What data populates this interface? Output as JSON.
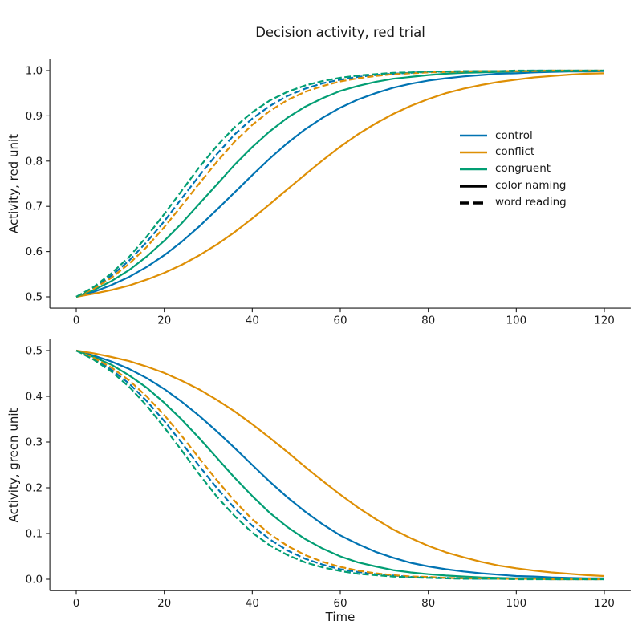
{
  "chart_data": {
    "type": "line",
    "title": "Decision activity, red trial",
    "xlabel": "Time",
    "xlim": [
      0,
      120
    ],
    "x_ticks": [
      0,
      20,
      40,
      60,
      80,
      100,
      120
    ],
    "grid": false,
    "legend_position": "upper panel, center right",
    "palette": {
      "control": "#0173b2",
      "conflict": "#de8f05",
      "congruent": "#029e73"
    },
    "legend": {
      "entries": [
        {
          "label": "control",
          "color": "#0173b2",
          "dashed": false,
          "thick": false
        },
        {
          "label": "conflict",
          "color": "#de8f05",
          "dashed": false,
          "thick": false
        },
        {
          "label": "congruent",
          "color": "#029e73",
          "dashed": false,
          "thick": false
        },
        {
          "label": "color naming",
          "color": "#000000",
          "dashed": false,
          "thick": true
        },
        {
          "label": "word reading",
          "color": "#000000",
          "dashed": true,
          "thick": true
        }
      ]
    },
    "t": [
      0,
      4,
      8,
      12,
      16,
      20,
      24,
      28,
      32,
      36,
      40,
      44,
      48,
      52,
      56,
      60,
      64,
      68,
      72,
      76,
      80,
      84,
      88,
      92,
      96,
      100,
      104,
      108,
      112,
      116,
      120
    ],
    "panels": [
      {
        "id": "red",
        "ylabel": "Activity, red unit",
        "ylim": [
          0.5,
          1.0
        ],
        "y_ticks": [
          0.5,
          0.6,
          0.7,
          0.8,
          0.9,
          1.0
        ],
        "series": [
          {
            "condition": "control",
            "task": "color naming",
            "style": "solid",
            "color": "#0173b2",
            "values": [
              0.5,
              0.511,
              0.526,
              0.544,
              0.566,
              0.592,
              0.622,
              0.656,
              0.693,
              0.731,
              0.769,
              0.806,
              0.84,
              0.87,
              0.896,
              0.918,
              0.936,
              0.95,
              0.962,
              0.971,
              0.978,
              0.983,
              0.987,
              0.99,
              0.993,
              0.994,
              0.996,
              0.997,
              0.998,
              0.998,
              0.999
            ]
          },
          {
            "condition": "conflict",
            "task": "color naming",
            "style": "solid",
            "color": "#de8f05",
            "values": [
              0.5,
              0.507,
              0.515,
              0.525,
              0.538,
              0.553,
              0.571,
              0.592,
              0.616,
              0.643,
              0.673,
              0.705,
              0.738,
              0.77,
              0.802,
              0.832,
              0.859,
              0.883,
              0.904,
              0.922,
              0.937,
              0.95,
              0.96,
              0.968,
              0.975,
              0.98,
              0.985,
              0.988,
              0.991,
              0.993,
              0.994
            ]
          },
          {
            "condition": "congruent",
            "task": "color naming",
            "style": "solid",
            "color": "#029e73",
            "values": [
              0.5,
              0.515,
              0.535,
              0.559,
              0.589,
              0.624,
              0.663,
              0.706,
              0.749,
              0.792,
              0.831,
              0.866,
              0.896,
              0.92,
              0.939,
              0.955,
              0.966,
              0.975,
              0.982,
              0.986,
              0.99,
              0.993,
              0.995,
              0.996,
              0.997,
              0.998,
              0.999,
              0.999,
              0.999,
              0.999,
              1.0
            ]
          },
          {
            "condition": "control",
            "task": "word reading",
            "style": "dashed",
            "color": "#0173b2",
            "values": [
              0.5,
              0.52,
              0.547,
              0.58,
              0.621,
              0.667,
              0.718,
              0.768,
              0.816,
              0.859,
              0.894,
              0.922,
              0.944,
              0.96,
              0.972,
              0.98,
              0.986,
              0.99,
              0.993,
              0.995,
              0.997,
              0.998,
              0.998,
              0.999,
              0.999,
              0.999,
              1.0,
              1.0,
              1.0,
              1.0,
              1.0
            ]
          },
          {
            "condition": "conflict",
            "task": "word reading",
            "style": "dashed",
            "color": "#de8f05",
            "values": [
              0.5,
              0.518,
              0.542,
              0.573,
              0.61,
              0.654,
              0.702,
              0.751,
              0.799,
              0.843,
              0.88,
              0.911,
              0.935,
              0.953,
              0.966,
              0.976,
              0.983,
              0.988,
              0.992,
              0.994,
              0.996,
              0.997,
              0.998,
              0.999,
              0.999,
              0.999,
              0.999,
              1.0,
              1.0,
              1.0,
              1.0
            ]
          },
          {
            "condition": "congruent",
            "task": "word reading",
            "style": "dashed",
            "color": "#029e73",
            "values": [
              0.5,
              0.522,
              0.552,
              0.588,
              0.633,
              0.683,
              0.735,
              0.787,
              0.834,
              0.875,
              0.908,
              0.934,
              0.953,
              0.967,
              0.977,
              0.984,
              0.989,
              0.992,
              0.995,
              0.996,
              0.998,
              0.998,
              0.999,
              0.999,
              0.999,
              1.0,
              1.0,
              1.0,
              1.0,
              1.0,
              1.0
            ]
          }
        ]
      },
      {
        "id": "green",
        "ylabel": "Activity, green unit",
        "ylim": [
          0.0,
          0.5
        ],
        "y_ticks": [
          0.0,
          0.1,
          0.2,
          0.3,
          0.4,
          0.5
        ],
        "series": [
          {
            "condition": "control",
            "task": "color naming",
            "style": "solid",
            "color": "#0173b2",
            "values": [
              0.5,
              0.489,
              0.476,
              0.46,
              0.44,
              0.416,
              0.388,
              0.357,
              0.323,
              0.287,
              0.25,
              0.213,
              0.179,
              0.148,
              0.12,
              0.096,
              0.077,
              0.06,
              0.047,
              0.036,
              0.028,
              0.022,
              0.017,
              0.013,
              0.01,
              0.007,
              0.006,
              0.004,
              0.003,
              0.002,
              0.002
            ]
          },
          {
            "condition": "conflict",
            "task": "color naming",
            "style": "solid",
            "color": "#de8f05",
            "values": [
              0.5,
              0.494,
              0.486,
              0.477,
              0.465,
              0.451,
              0.434,
              0.415,
              0.392,
              0.367,
              0.339,
              0.309,
              0.278,
              0.246,
              0.215,
              0.185,
              0.157,
              0.132,
              0.109,
              0.09,
              0.073,
              0.059,
              0.048,
              0.038,
              0.03,
              0.024,
              0.019,
              0.015,
              0.012,
              0.009,
              0.007
            ]
          },
          {
            "condition": "congruent",
            "task": "color naming",
            "style": "solid",
            "color": "#029e73",
            "values": [
              0.5,
              0.486,
              0.469,
              0.446,
              0.419,
              0.386,
              0.349,
              0.308,
              0.265,
              0.222,
              0.182,
              0.145,
              0.114,
              0.088,
              0.067,
              0.05,
              0.037,
              0.028,
              0.02,
              0.015,
              0.011,
              0.008,
              0.006,
              0.004,
              0.003,
              0.002,
              0.002,
              0.001,
              0.001,
              0.001,
              0.001
            ]
          },
          {
            "condition": "control",
            "task": "word reading",
            "style": "dashed",
            "color": "#0173b2",
            "values": [
              0.5,
              0.482,
              0.458,
              0.428,
              0.39,
              0.346,
              0.298,
              0.247,
              0.199,
              0.155,
              0.117,
              0.087,
              0.063,
              0.045,
              0.032,
              0.022,
              0.016,
              0.011,
              0.008,
              0.005,
              0.004,
              0.003,
              0.002,
              0.001,
              0.001,
              0.001,
              0.001,
              0.0,
              0.0,
              0.0,
              0.0
            ]
          },
          {
            "condition": "conflict",
            "task": "word reading",
            "style": "dashed",
            "color": "#de8f05",
            "values": [
              0.5,
              0.484,
              0.463,
              0.435,
              0.4,
              0.359,
              0.313,
              0.264,
              0.216,
              0.171,
              0.131,
              0.099,
              0.073,
              0.053,
              0.038,
              0.027,
              0.019,
              0.013,
              0.009,
              0.006,
              0.005,
              0.003,
              0.002,
              0.002,
              0.001,
              0.001,
              0.001,
              0.0,
              0.0,
              0.0,
              0.0
            ]
          },
          {
            "condition": "congruent",
            "task": "word reading",
            "style": "dashed",
            "color": "#029e73",
            "values": [
              0.5,
              0.48,
              0.454,
              0.421,
              0.38,
              0.332,
              0.281,
              0.229,
              0.18,
              0.138,
              0.102,
              0.074,
              0.053,
              0.037,
              0.026,
              0.018,
              0.012,
              0.009,
              0.006,
              0.004,
              0.003,
              0.002,
              0.001,
              0.001,
              0.001,
              0.0,
              0.0,
              0.0,
              0.0,
              0.0,
              0.0
            ]
          }
        ]
      }
    ]
  }
}
